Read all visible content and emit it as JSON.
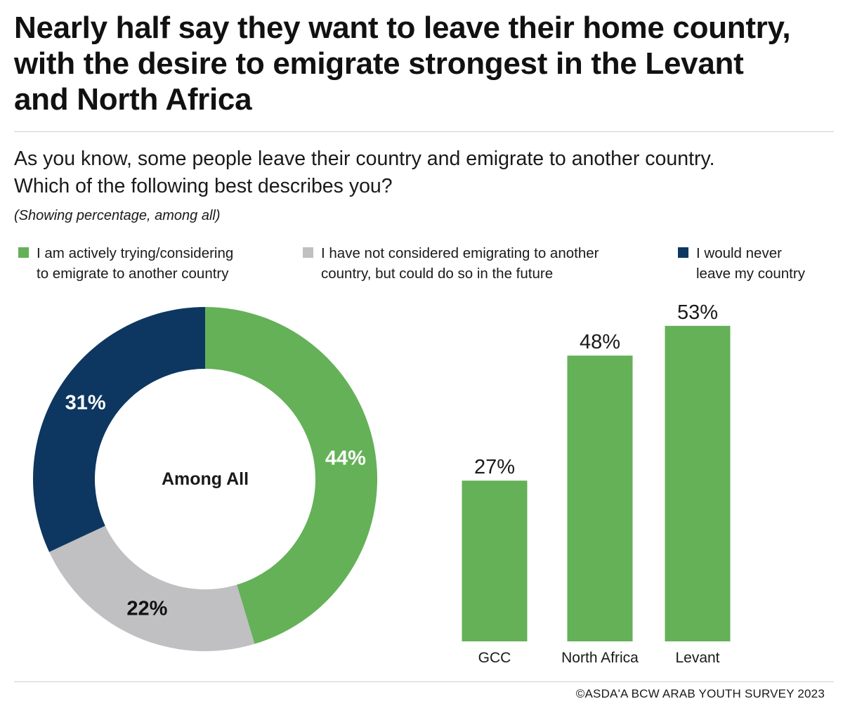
{
  "title": "Nearly half say they want to leave their home country, with the desire to emigrate strongest in the Levant and North Africa",
  "question": "As you know, some people leave their country and emigrate to another country. Which of the following best describes you?",
  "note": "(Showing percentage, among all)",
  "legend": [
    {
      "label": "I am actively trying/considering\nto emigrate to another country",
      "color": "#64b158"
    },
    {
      "label": "I have not considered emigrating to another\ncountry, but could do so in the future",
      "color": "#c0bfc1"
    },
    {
      "label": "I would never\nleave my country",
      "color": "#0d3760"
    }
  ],
  "footer": "©ASDA'A BCW ARAB YOUTH SURVEY 2023",
  "chart_data": [
    {
      "type": "pie",
      "center_label": "Among All",
      "slices": [
        {
          "name": "I am actively trying/considering to emigrate to another country",
          "value": 44,
          "label": "44%",
          "color": "#64b158"
        },
        {
          "name": "I have not considered emigrating to another country, but could do so in the future",
          "value": 22,
          "label": "22%",
          "color": "#c0bfc1"
        },
        {
          "name": "I would never leave my country",
          "value": 31,
          "label": "31%",
          "color": "#0d3760"
        }
      ]
    },
    {
      "type": "bar",
      "categories": [
        "GCC",
        "North Africa",
        "Levant"
      ],
      "values": [
        27,
        48,
        53
      ],
      "labels": [
        "27%",
        "48%",
        "53%"
      ],
      "color": "#64b158",
      "ylim": [
        0,
        59
      ]
    }
  ]
}
